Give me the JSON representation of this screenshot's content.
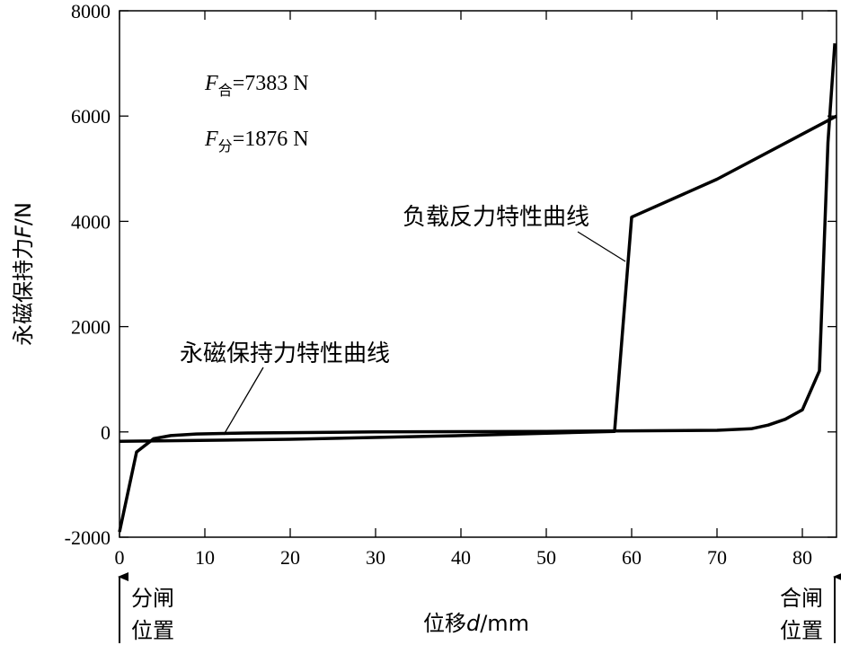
{
  "chart_data": {
    "type": "line",
    "xlabel": {
      "main": "位移",
      "var": "d",
      "unit": "/mm"
    },
    "ylabel": {
      "main": "永磁保持力",
      "var": "F",
      "unit": "/N"
    },
    "xlim": [
      0,
      84
    ],
    "ylim": [
      -2000,
      8000
    ],
    "x_ticks": [
      "0",
      "10",
      "20",
      "30",
      "40",
      "50",
      "60",
      "70",
      "80"
    ],
    "y_ticks": [
      "-2000",
      "0",
      "2000",
      "4000",
      "6000",
      "8000"
    ],
    "grid": false,
    "series": [
      {
        "name": "永磁保持力特性曲线",
        "points": [
          [
            0,
            -1900
          ],
          [
            2,
            -380
          ],
          [
            4,
            -130
          ],
          [
            6,
            -70
          ],
          [
            9,
            -40
          ],
          [
            15,
            -20
          ],
          [
            30,
            0
          ],
          [
            50,
            10
          ],
          [
            60,
            20
          ],
          [
            70,
            30
          ],
          [
            74,
            60
          ],
          [
            76,
            130
          ],
          [
            78,
            240
          ],
          [
            80,
            420
          ],
          [
            82,
            1160
          ],
          [
            83,
            5500
          ],
          [
            83.8,
            7383
          ]
        ]
      },
      {
        "name": "负载反力特性曲线",
        "points": [
          [
            0,
            -180
          ],
          [
            20,
            -140
          ],
          [
            40,
            -70
          ],
          [
            58,
            10
          ],
          [
            60,
            4080
          ],
          [
            70,
            4800
          ],
          [
            84,
            6000
          ]
        ]
      }
    ],
    "annotations": [
      {
        "prefix": "F",
        "sub": "合",
        "value": "=7383 N"
      },
      {
        "prefix": "F",
        "sub": "分",
        "value": "=1876 N"
      }
    ],
    "position_labels": {
      "left": {
        "line1": "分闸",
        "line2": "位置"
      },
      "right": {
        "line1": "合闸",
        "line2": "位置"
      }
    }
  }
}
